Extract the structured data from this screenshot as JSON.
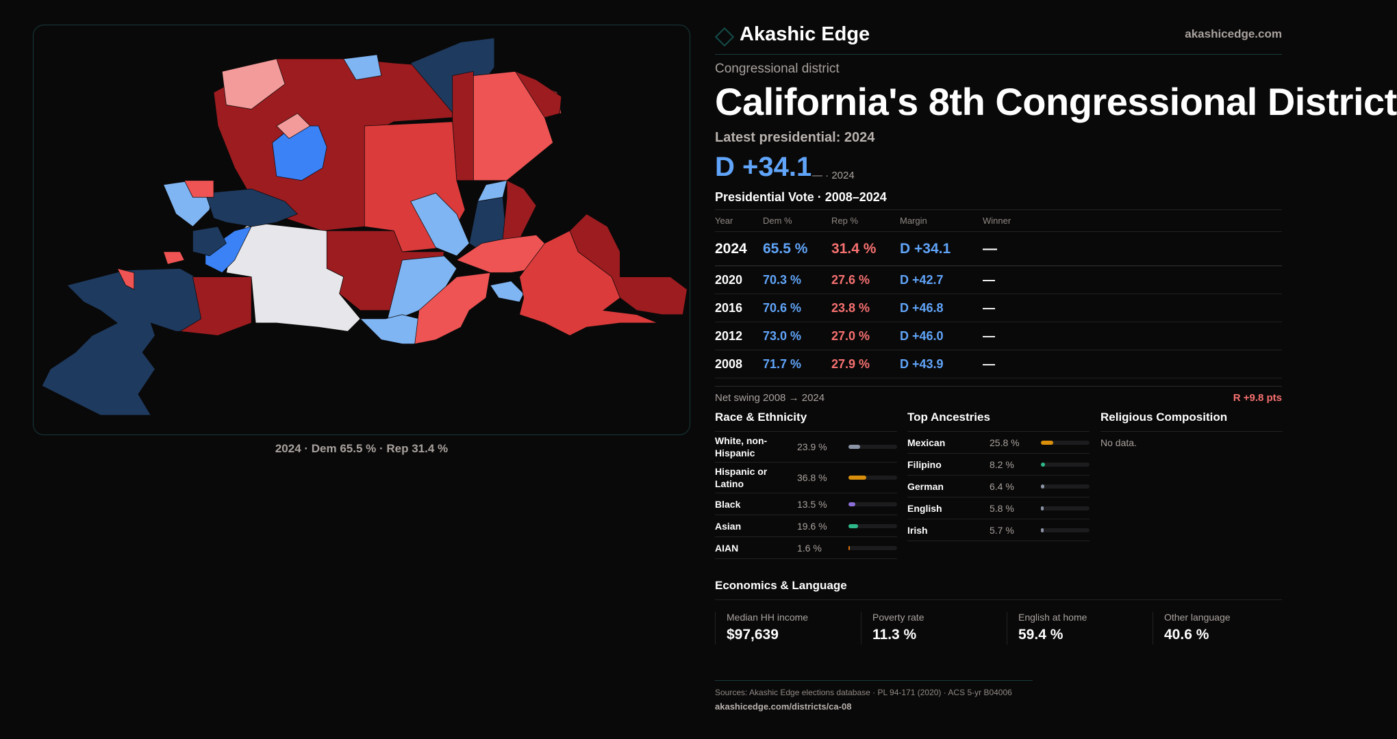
{
  "map": {
    "caption": "2024 · Dem 65.5 % · Rep 31.4 %",
    "colors": {
      "navy": "#1e3a5f",
      "light_blue": "#7fb5f3",
      "blue": "#3b82f6",
      "dark_red": "#9d1c20",
      "red": "#dc3b3b",
      "light_red": "#ef5454",
      "pink": "#f39a9a",
      "white": "#e7e6ea"
    }
  },
  "header": {
    "brand": "Akashic Edge",
    "site": "akashicedge.com"
  },
  "kicker": "Congressional district",
  "title": "California's 8th Congressional District",
  "latest_label": "Latest presidential: 2024",
  "latest_margin": "D +34.1",
  "latest_sub": "— · 2024",
  "vote": {
    "title": "Presidential Vote · 2008–2024",
    "columns": [
      "Year",
      "Dem %",
      "Rep %",
      "Margin",
      "Winner"
    ],
    "rows": [
      {
        "year": "2024",
        "dem": "65.5 %",
        "rep": "31.4 %",
        "margin": "D +34.1",
        "winner": "—"
      },
      {
        "year": "2020",
        "dem": "70.3 %",
        "rep": "27.6 %",
        "margin": "D +42.7",
        "winner": "—"
      },
      {
        "year": "2016",
        "dem": "70.6 %",
        "rep": "23.8 %",
        "margin": "D +46.8",
        "winner": "—"
      },
      {
        "year": "2012",
        "dem": "73.0 %",
        "rep": "27.0 %",
        "margin": "D +46.0",
        "winner": "—"
      },
      {
        "year": "2008",
        "dem": "71.7 %",
        "rep": "27.9 %",
        "margin": "D +43.9",
        "winner": "—"
      }
    ],
    "swing_label": "Net swing 2008 → 2024",
    "swing_value": "R +9.8 pts"
  },
  "race": {
    "title": "Race & Ethnicity",
    "items": [
      {
        "label": "White, non-Hispanic",
        "value": "23.9 %",
        "pct": 23.9,
        "color": "#8a94a6"
      },
      {
        "label": "Hispanic or Latino",
        "value": "36.8 %",
        "pct": 36.8,
        "color": "#d98f0b"
      },
      {
        "label": "Black",
        "value": "13.5 %",
        "pct": 13.5,
        "color": "#8b6fd6"
      },
      {
        "label": "Asian",
        "value": "19.6 %",
        "pct": 19.6,
        "color": "#2eb88a"
      },
      {
        "label": "AIAN",
        "value": "1.6 %",
        "pct": 1.6,
        "color": "#d9700b"
      }
    ]
  },
  "ancestry": {
    "title": "Top Ancestries",
    "items": [
      {
        "label": "Mexican",
        "value": "25.8 %",
        "pct": 25.8,
        "color": "#d98f0b"
      },
      {
        "label": "Filipino",
        "value": "8.2 %",
        "pct": 8.2,
        "color": "#2eb88a"
      },
      {
        "label": "German",
        "value": "6.4 %",
        "pct": 6.4,
        "color": "#8a94a6"
      },
      {
        "label": "English",
        "value": "5.8 %",
        "pct": 5.8,
        "color": "#8a94a6"
      },
      {
        "label": "Irish",
        "value": "5.7 %",
        "pct": 5.7,
        "color": "#8a94a6"
      }
    ]
  },
  "religion": {
    "title": "Religious Composition",
    "empty": "No data."
  },
  "economics": {
    "title": "Economics & Language",
    "stats": [
      {
        "label": "Median HH income",
        "value": "$97,639"
      },
      {
        "label": "Poverty rate",
        "value": "11.3 %"
      },
      {
        "label": "English at home",
        "value": "59.4 %"
      },
      {
        "label": "Other language",
        "value": "40.6 %"
      }
    ]
  },
  "footer": {
    "sources": "Sources: Akashic Edge elections database · PL 94-171 (2020) · ACS 5-yr B04006",
    "url": "akashicedge.com/districts/ca-08"
  }
}
